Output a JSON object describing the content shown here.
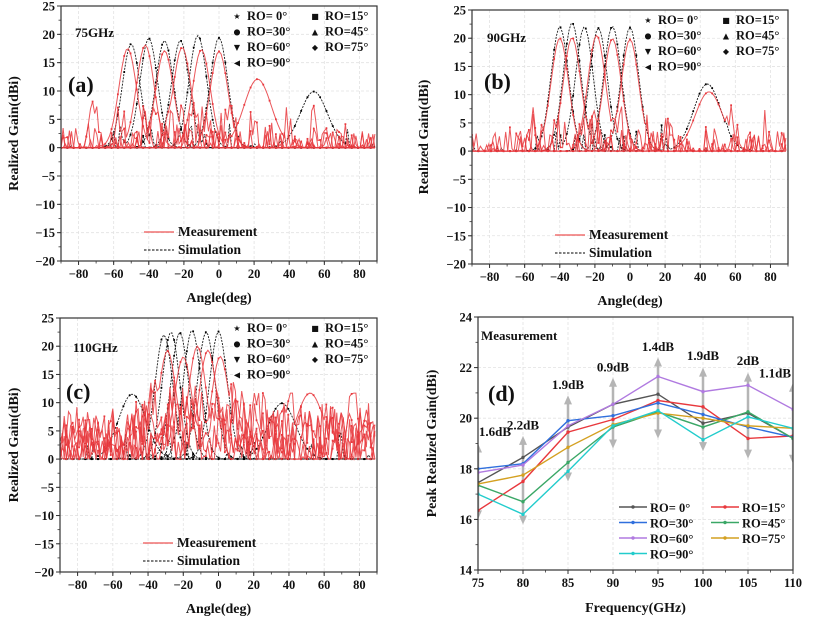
{
  "chart_data": [
    {
      "id": "a",
      "type": "line",
      "panel_label": "(a)",
      "annotation": "75GHz",
      "xlabel": "Angle(deg)",
      "ylabel": "Realized Gain(dBi)",
      "xlim": [
        -90,
        90
      ],
      "ylim": [
        -20,
        25
      ],
      "xticks": [
        -80,
        -60,
        -40,
        -20,
        0,
        20,
        40,
        60,
        80
      ],
      "yticks": [
        -20,
        -15,
        -10,
        -5,
        0,
        5,
        10,
        15,
        20,
        25
      ],
      "grid": true,
      "legend_markers": [
        "RO= 0°",
        "RO=15°",
        "RO=30°",
        "RO=45°",
        "RO=60°",
        "RO=75°",
        "RO=90°"
      ],
      "legend_lines": [
        "Measurement",
        "Simulation"
      ],
      "series_style": {
        "Measurement": "#e8383d",
        "Simulation": "#000000"
      },
      "beams": {
        "simulation": [
          {
            "peak_angle": -50,
            "peak_gain": 18.3
          },
          {
            "peak_angle": -40,
            "peak_gain": 19.3
          },
          {
            "peak_angle": -31,
            "peak_gain": 18.9
          },
          {
            "peak_angle": -22,
            "peak_gain": 18.9
          },
          {
            "peak_angle": -12,
            "peak_gain": 19.8
          },
          {
            "peak_angle": 0,
            "peak_gain": 19.4
          },
          {
            "peak_angle": 54,
            "peak_gain": 9.9
          }
        ],
        "measurement": [
          {
            "peak_angle": -52,
            "peak_gain": 17.5
          },
          {
            "peak_angle": -42,
            "peak_gain": 18.1
          },
          {
            "peak_angle": -31,
            "peak_gain": 17.1
          },
          {
            "peak_angle": -21,
            "peak_gain": 17.7
          },
          {
            "peak_angle": -10,
            "peak_gain": 17.3
          },
          {
            "peak_angle": 0,
            "peak_gain": 17.0
          },
          {
            "peak_angle": 22,
            "peak_gain": 12.1
          }
        ]
      }
    },
    {
      "id": "b",
      "type": "line",
      "panel_label": "(b)",
      "annotation": "90GHz",
      "xlabel": "Angle(deg)",
      "ylabel": "Realized Gain(dBi)",
      "xlim": [
        -90,
        90
      ],
      "ylim": [
        -20,
        25
      ],
      "xticks": [
        -80,
        -60,
        -40,
        -20,
        0,
        20,
        40,
        60,
        80
      ],
      "yticks": [
        -20,
        -15,
        -10,
        -5,
        0,
        5,
        10,
        15,
        20,
        25
      ],
      "grid": true,
      "legend_markers": [
        "RO= 0°",
        "RO=15°",
        "RO=30°",
        "RO=45°",
        "RO=60°",
        "RO=75°",
        "RO=90°"
      ],
      "legend_lines": [
        "Measurement",
        "Simulation"
      ],
      "series_style": {
        "Measurement": "#e8383d",
        "Simulation": "#000000"
      },
      "beams": {
        "simulation": [
          {
            "peak_angle": -40,
            "peak_gain": 22.0
          },
          {
            "peak_angle": -33,
            "peak_gain": 22.7
          },
          {
            "peak_angle": -26,
            "peak_gain": 22.0
          },
          {
            "peak_angle": -18,
            "peak_gain": 21.8
          },
          {
            "peak_angle": -10,
            "peak_gain": 22.1
          },
          {
            "peak_angle": 0,
            "peak_gain": 21.9
          },
          {
            "peak_angle": 44,
            "peak_gain": 11.9
          }
        ],
        "measurement": [
          {
            "peak_angle": -40,
            "peak_gain": 20.0
          },
          {
            "peak_angle": -33,
            "peak_gain": 20.1
          },
          {
            "peak_angle": -19,
            "peak_gain": 20.5
          },
          {
            "peak_angle": -10,
            "peak_gain": 19.9
          },
          {
            "peak_angle": 0,
            "peak_gain": 19.8
          },
          {
            "peak_angle": 45,
            "peak_gain": 10.5
          }
        ]
      }
    },
    {
      "id": "c",
      "type": "line",
      "panel_label": "(c)",
      "annotation": "110GHz",
      "xlabel": "Angle(deg)",
      "ylabel": "Realized Gain(dBi)",
      "xlim": [
        -90,
        90
      ],
      "ylim": [
        -20,
        25
      ],
      "xticks": [
        -80,
        -60,
        -40,
        -20,
        0,
        20,
        40,
        60,
        80
      ],
      "yticks": [
        -20,
        -15,
        -10,
        -5,
        0,
        5,
        10,
        15,
        20,
        25
      ],
      "grid": true,
      "legend_markers": [
        "RO= 0°",
        "RO=15°",
        "RO=30°",
        "RO=45°",
        "RO=60°",
        "RO=75°",
        "RO=90°"
      ],
      "legend_lines": [
        "Measurement",
        "Simulation"
      ],
      "series_style": {
        "Measurement": "#e8383d",
        "Simulation": "#000000"
      },
      "beams": {
        "simulation": [
          {
            "peak_angle": -31,
            "peak_gain": 22.0
          },
          {
            "peak_angle": -27,
            "peak_gain": 22.5
          },
          {
            "peak_angle": -22,
            "peak_gain": 22.4
          },
          {
            "peak_angle": -15,
            "peak_gain": 22.8
          },
          {
            "peak_angle": -7,
            "peak_gain": 22.5
          },
          {
            "peak_angle": 0,
            "peak_gain": 22.6
          },
          {
            "peak_angle": -49,
            "peak_gain": 11.5
          },
          {
            "peak_angle": 36,
            "peak_gain": 9.9
          }
        ],
        "measurement": [
          {
            "peak_angle": -29,
            "peak_gain": 19.2
          },
          {
            "peak_angle": -20,
            "peak_gain": 18.1
          },
          {
            "peak_angle": -12,
            "peak_gain": 20.0
          },
          {
            "peak_angle": -6,
            "peak_gain": 19.3
          },
          {
            "peak_angle": 1,
            "peak_gain": 18.2
          },
          {
            "peak_angle": 52,
            "peak_gain": 11.7
          }
        ]
      }
    },
    {
      "id": "d",
      "type": "line",
      "panel_label": "(d)",
      "annotation": "Measurement",
      "xlabel": "Frequency(GHz)",
      "ylabel": "Peak Realized Gain(dBi)",
      "xlim": [
        75,
        110
      ],
      "ylim": [
        14,
        24
      ],
      "xticks": [
        75,
        80,
        85,
        90,
        95,
        100,
        105,
        110
      ],
      "yticks": [
        14,
        16,
        18,
        20,
        22,
        24
      ],
      "grid": true,
      "legend_position": "bottom-right",
      "x": [
        75,
        80,
        85,
        90,
        95,
        100,
        105,
        110
      ],
      "series": [
        {
          "name": "RO= 0°",
          "color": "#555555",
          "values": [
            17.45,
            18.45,
            19.65,
            20.55,
            20.95,
            19.8,
            20.2,
            19.2
          ]
        },
        {
          "name": "RO=15°",
          "color": "#e8383d",
          "values": [
            16.35,
            17.5,
            19.45,
            19.95,
            20.7,
            20.45,
            19.2,
            19.3
          ]
        },
        {
          "name": "RO=30°",
          "color": "#2f6fdd",
          "values": [
            18.0,
            18.2,
            19.9,
            20.1,
            20.6,
            20.15,
            19.65,
            19.25
          ]
        },
        {
          "name": "RO=45°",
          "color": "#3aa766",
          "values": [
            17.35,
            16.7,
            18.25,
            19.65,
            20.25,
            19.65,
            20.25,
            19.2
          ]
        },
        {
          "name": "RO=60°",
          "color": "#b07ae0",
          "values": [
            17.85,
            18.15,
            19.7,
            20.55,
            21.65,
            21.05,
            21.3,
            20.35
          ]
        },
        {
          "name": "RO=75°",
          "color": "#d4a020",
          "values": [
            17.4,
            17.75,
            18.85,
            19.75,
            20.2,
            20.0,
            19.7,
            19.6
          ]
        },
        {
          "name": "RO=90°",
          "color": "#22cccc",
          "values": [
            17.0,
            16.2,
            17.9,
            19.7,
            20.3,
            19.15,
            20.05,
            19.6
          ]
        }
      ],
      "spread_annotations": [
        {
          "x": 75,
          "label": "1.6dB",
          "low": 16.0,
          "high": 19.0
        },
        {
          "x": 80,
          "label": "2.2dB",
          "low": 15.8,
          "high": 19.3
        },
        {
          "x": 85,
          "label": "1.9dB",
          "low": 17.5,
          "high": 20.9
        },
        {
          "x": 90,
          "label": "0.9dB",
          "low": 18.8,
          "high": 21.6
        },
        {
          "x": 95,
          "label": "1.4dB",
          "low": 19.2,
          "high": 22.4
        },
        {
          "x": 100,
          "label": "1.9dB",
          "low": 18.7,
          "high": 22.0
        },
        {
          "x": 105,
          "label": "2dB",
          "low": 18.4,
          "high": 21.8
        },
        {
          "x": 110,
          "label": "1.1dB",
          "low": 18.2,
          "high": 21.4
        }
      ]
    }
  ]
}
